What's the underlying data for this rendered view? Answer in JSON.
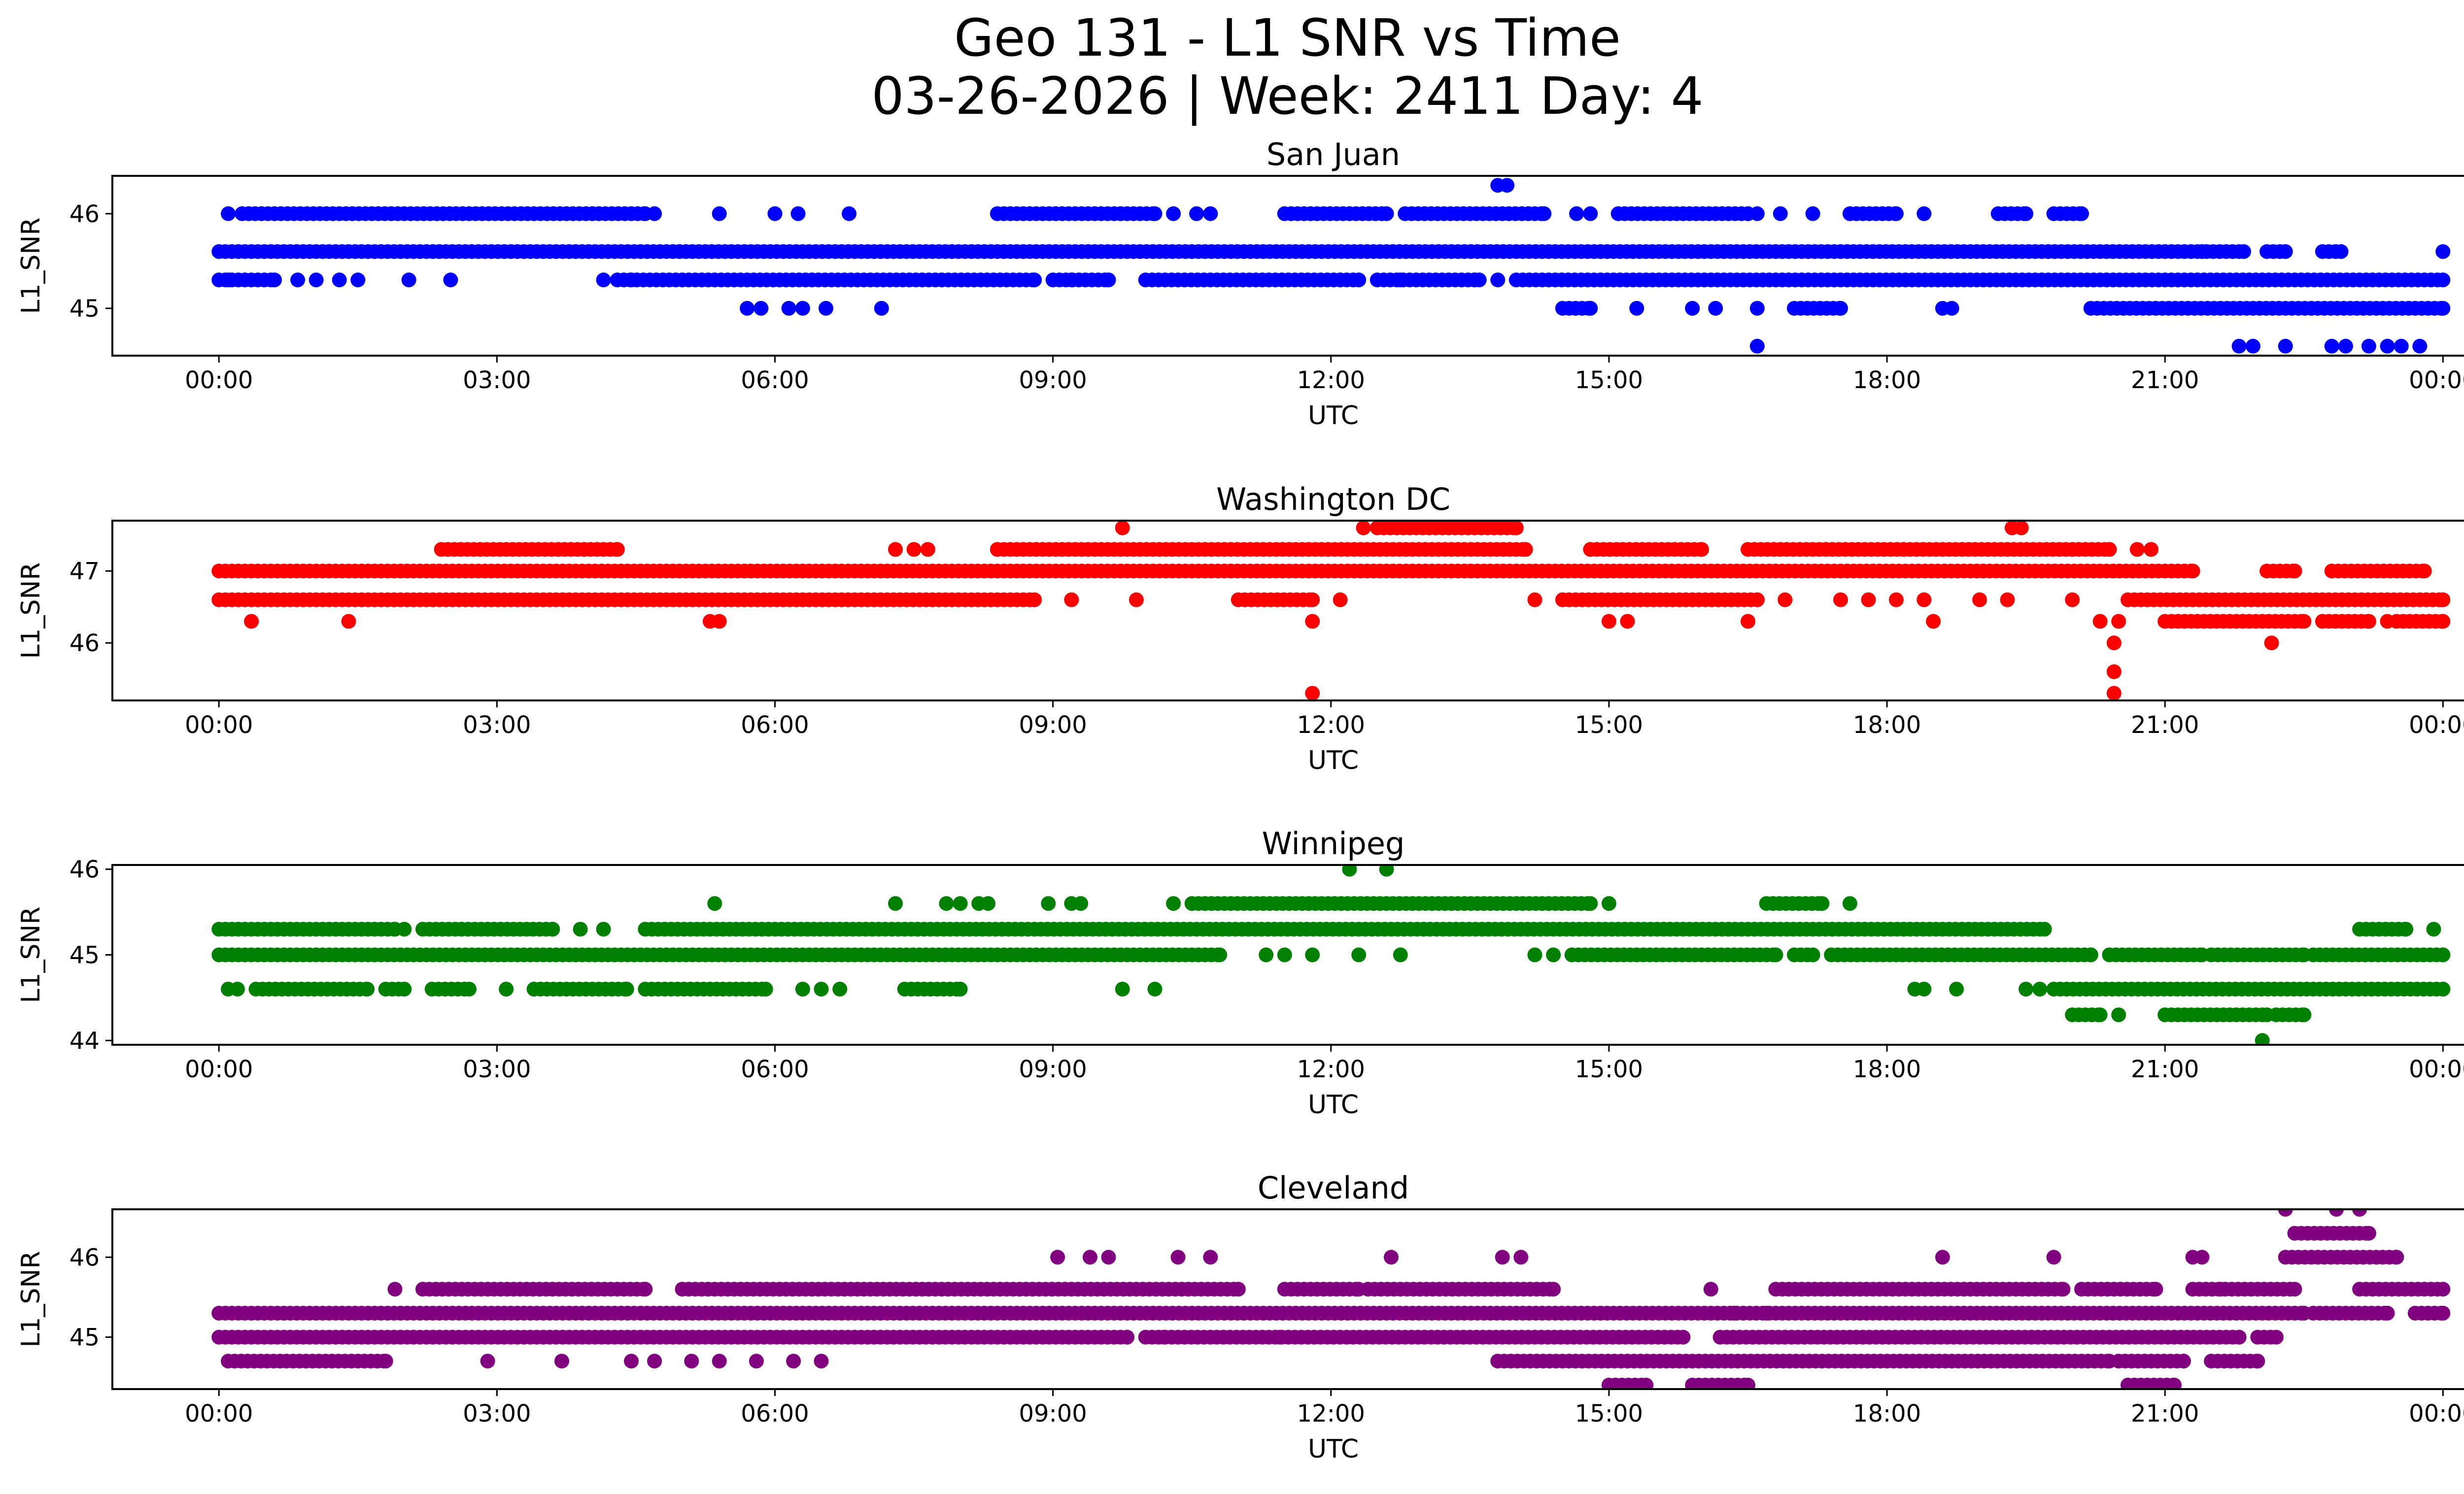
{
  "figure": {
    "title_line1": "Geo 131 - L1 SNR vs Time",
    "title_line2": "03-26-2026 | Week: 2411 Day: 4"
  },
  "chart_data": [
    {
      "type": "scatter",
      "title": "San Juan",
      "xlabel": "UTC",
      "ylabel": "L1_SNR",
      "color": "#0000ff",
      "xlim": [
        -1.15,
        25.2
      ],
      "ylim": [
        44.5,
        46.4
      ],
      "xticks": [
        "00:00",
        "03:00",
        "06:00",
        "09:00",
        "12:00",
        "15:00",
        "18:00",
        "21:00",
        "00:00"
      ],
      "yticks": [
        45,
        46
      ],
      "bands": [
        {
          "y": 45.6,
          "segments": [
            [
              0,
              21.4
            ],
            [
              21.45,
              21.85
            ],
            [
              22.1,
              22.3
            ],
            [
              22.7,
              22.9
            ]
          ]
        },
        {
          "y": 45.3,
          "segments": [
            [
              0,
              0.6
            ],
            [
              4.3,
              8.8
            ],
            [
              9.0,
              9.6
            ],
            [
              10.0,
              12.3
            ],
            [
              12.5,
              13.6
            ],
            [
              14.0,
              24.0
            ]
          ]
        },
        {
          "y": 46.0,
          "segments": [
            [
              0.25,
              4.6
            ],
            [
              8.4,
              10.1
            ],
            [
              11.5,
              12.6
            ],
            [
              12.8,
              14.3
            ],
            [
              15.1,
              16.5
            ],
            [
              17.6,
              18.1
            ],
            [
              19.2,
              19.5
            ],
            [
              19.8,
              20.1
            ]
          ]
        },
        {
          "y": 45.0,
          "segments": [
            [
              14.5,
              14.8
            ],
            [
              17.0,
              17.5
            ],
            [
              20.2,
              24.0
            ]
          ]
        }
      ],
      "points": [
        {
          "x": 0.1,
          "y": 45.3
        },
        {
          "x": 0.85,
          "y": 45.3
        },
        {
          "x": 1.05,
          "y": 45.3
        },
        {
          "x": 1.3,
          "y": 45.3
        },
        {
          "x": 1.5,
          "y": 45.3
        },
        {
          "x": 2.05,
          "y": 45.3
        },
        {
          "x": 2.5,
          "y": 45.3
        },
        {
          "x": 4.15,
          "y": 45.3
        },
        {
          "x": 4.45,
          "y": 45.3
        },
        {
          "x": 9.2,
          "y": 45.3
        },
        {
          "x": 12.1,
          "y": 45.3
        },
        {
          "x": 12.75,
          "y": 45.3
        },
        {
          "x": 13.55,
          "y": 45.3
        },
        {
          "x": 13.8,
          "y": 45.3
        },
        {
          "x": 0.1,
          "y": 46.0
        },
        {
          "x": 4.7,
          "y": 46.0
        },
        {
          "x": 5.4,
          "y": 46.0
        },
        {
          "x": 6.0,
          "y": 46.0
        },
        {
          "x": 6.25,
          "y": 46.0
        },
        {
          "x": 6.8,
          "y": 46.0
        },
        {
          "x": 10.3,
          "y": 46.0
        },
        {
          "x": 10.55,
          "y": 46.0
        },
        {
          "x": 10.7,
          "y": 46.0
        },
        {
          "x": 14.65,
          "y": 46.0
        },
        {
          "x": 14.8,
          "y": 46.0
        },
        {
          "x": 16.6,
          "y": 46.0
        },
        {
          "x": 16.85,
          "y": 46.0
        },
        {
          "x": 17.2,
          "y": 46.0
        },
        {
          "x": 18.4,
          "y": 46.0
        },
        {
          "x": 13.8,
          "y": 46.3
        },
        {
          "x": 13.9,
          "y": 46.3
        },
        {
          "x": 5.7,
          "y": 45.0
        },
        {
          "x": 5.85,
          "y": 45.0
        },
        {
          "x": 6.15,
          "y": 45.0
        },
        {
          "x": 6.3,
          "y": 45.0
        },
        {
          "x": 6.55,
          "y": 45.0
        },
        {
          "x": 7.15,
          "y": 45.0
        },
        {
          "x": 15.3,
          "y": 45.0
        },
        {
          "x": 15.9,
          "y": 45.0
        },
        {
          "x": 16.15,
          "y": 45.0
        },
        {
          "x": 16.6,
          "y": 45.0
        },
        {
          "x": 18.6,
          "y": 45.0
        },
        {
          "x": 18.7,
          "y": 45.0
        },
        {
          "x": 16.6,
          "y": 44.6
        },
        {
          "x": 21.8,
          "y": 44.6
        },
        {
          "x": 21.95,
          "y": 44.6
        },
        {
          "x": 22.3,
          "y": 44.6
        },
        {
          "x": 22.8,
          "y": 44.6
        },
        {
          "x": 22.95,
          "y": 44.6
        },
        {
          "x": 23.2,
          "y": 44.6
        },
        {
          "x": 23.4,
          "y": 44.6
        },
        {
          "x": 23.55,
          "y": 44.6
        },
        {
          "x": 23.75,
          "y": 44.6
        },
        {
          "x": 24.0,
          "y": 45.6
        }
      ]
    },
    {
      "type": "scatter",
      "title": "Washington DC",
      "xlabel": "UTC",
      "ylabel": "L1_SNR",
      "color": "#ff0000",
      "xlim": [
        -1.15,
        25.2
      ],
      "ylim": [
        45.2,
        47.7
      ],
      "xticks": [
        "00:00",
        "03:00",
        "06:00",
        "09:00",
        "12:00",
        "15:00",
        "18:00",
        "21:00",
        "00:00"
      ],
      "yticks": [
        46,
        47
      ],
      "bands": [
        {
          "y": 47.0,
          "segments": [
            [
              0,
              21.3
            ],
            [
              22.1,
              22.4
            ],
            [
              22.8,
              23.8
            ]
          ]
        },
        {
          "y": 46.6,
          "segments": [
            [
              0,
              8.8
            ],
            [
              11.0,
              11.8
            ],
            [
              14.5,
              16.6
            ],
            [
              20.6,
              24.0
            ]
          ]
        },
        {
          "y": 47.3,
          "segments": [
            [
              2.4,
              4.3
            ],
            [
              8.4,
              14.1
            ],
            [
              14.8,
              16.0
            ],
            [
              16.5,
              20.4
            ]
          ]
        },
        {
          "y": 46.3,
          "segments": [
            [
              21.0,
              22.5
            ],
            [
              22.7,
              23.2
            ],
            [
              23.5,
              24.0
            ]
          ]
        },
        {
          "y": 47.6,
          "segments": [
            [
              12.5,
              14.0
            ]
          ]
        }
      ],
      "points": [
        {
          "x": 0.35,
          "y": 46.3
        },
        {
          "x": 1.4,
          "y": 46.3
        },
        {
          "x": 5.3,
          "y": 46.3
        },
        {
          "x": 5.4,
          "y": 46.3
        },
        {
          "x": 11.8,
          "y": 46.3
        },
        {
          "x": 15.0,
          "y": 46.3
        },
        {
          "x": 15.2,
          "y": 46.3
        },
        {
          "x": 16.5,
          "y": 46.3
        },
        {
          "x": 18.5,
          "y": 46.3
        },
        {
          "x": 20.3,
          "y": 46.3
        },
        {
          "x": 20.5,
          "y": 46.3
        },
        {
          "x": 23.4,
          "y": 46.3
        },
        {
          "x": 7.3,
          "y": 47.3
        },
        {
          "x": 7.5,
          "y": 47.3
        },
        {
          "x": 7.65,
          "y": 47.3
        },
        {
          "x": 20.7,
          "y": 47.3
        },
        {
          "x": 20.85,
          "y": 47.3
        },
        {
          "x": 9.2,
          "y": 46.6
        },
        {
          "x": 9.9,
          "y": 46.6
        },
        {
          "x": 12.1,
          "y": 46.6
        },
        {
          "x": 14.2,
          "y": 46.6
        },
        {
          "x": 16.9,
          "y": 46.6
        },
        {
          "x": 17.5,
          "y": 46.6
        },
        {
          "x": 17.8,
          "y": 46.6
        },
        {
          "x": 18.1,
          "y": 46.6
        },
        {
          "x": 18.4,
          "y": 46.6
        },
        {
          "x": 19.0,
          "y": 46.6
        },
        {
          "x": 19.3,
          "y": 46.6
        },
        {
          "x": 20.0,
          "y": 46.6
        },
        {
          "x": 9.75,
          "y": 47.6
        },
        {
          "x": 12.35,
          "y": 47.6
        },
        {
          "x": 19.35,
          "y": 47.6
        },
        {
          "x": 19.45,
          "y": 47.6
        },
        {
          "x": 20.45,
          "y": 46.0
        },
        {
          "x": 22.15,
          "y": 46.0
        },
        {
          "x": 20.45,
          "y": 45.6
        },
        {
          "x": 20.45,
          "y": 45.3
        },
        {
          "x": 11.8,
          "y": 45.3
        }
      ]
    },
    {
      "type": "scatter",
      "title": "Winnipeg",
      "xlabel": "UTC",
      "ylabel": "L1_SNR",
      "color": "#008000",
      "xlim": [
        -1.15,
        25.2
      ],
      "ylim": [
        43.95,
        46.05
      ],
      "xticks": [
        "00:00",
        "03:00",
        "06:00",
        "09:00",
        "12:00",
        "15:00",
        "18:00",
        "21:00",
        "00:00"
      ],
      "yticks": [
        44,
        45,
        46
      ],
      "bands": [
        {
          "y": 45.0,
          "segments": [
            [
              0,
              10.8
            ],
            [
              14.6,
              16.8
            ],
            [
              17.0,
              17.2
            ],
            [
              17.4,
              20.2
            ],
            [
              20.4,
              21.4
            ],
            [
              21.5,
              22.5
            ],
            [
              22.6,
              24.0
            ]
          ]
        },
        {
          "y": 45.3,
          "segments": [
            [
              0,
              1.9
            ],
            [
              2.2,
              3.6
            ],
            [
              4.6,
              19.7
            ],
            [
              23.1,
              23.6
            ]
          ]
        },
        {
          "y": 44.6,
          "segments": [
            [
              0.4,
              1.6
            ],
            [
              1.8,
              2.0
            ],
            [
              2.3,
              2.7
            ],
            [
              3.4,
              4.4
            ],
            [
              4.6,
              5.9
            ],
            [
              7.4,
              8.0
            ],
            [
              19.8,
              24.0
            ]
          ]
        },
        {
          "y": 45.6,
          "segments": [
            [
              10.5,
              14.8
            ],
            [
              16.7,
              17.3
            ]
          ]
        },
        {
          "y": 44.3,
          "segments": [
            [
              20.0,
              20.3
            ],
            [
              21.0,
              22.1
            ],
            [
              22.2,
              22.5
            ]
          ]
        }
      ],
      "points": [
        {
          "x": 5.35,
          "y": 45.6
        },
        {
          "x": 7.3,
          "y": 45.6
        },
        {
          "x": 7.85,
          "y": 45.6
        },
        {
          "x": 8.0,
          "y": 45.6
        },
        {
          "x": 8.2,
          "y": 45.6
        },
        {
          "x": 8.3,
          "y": 45.6
        },
        {
          "x": 8.95,
          "y": 45.6
        },
        {
          "x": 9.2,
          "y": 45.6
        },
        {
          "x": 9.3,
          "y": 45.6
        },
        {
          "x": 10.3,
          "y": 45.6
        },
        {
          "x": 15.0,
          "y": 45.6
        },
        {
          "x": 17.6,
          "y": 45.6
        },
        {
          "x": 12.2,
          "y": 46.0
        },
        {
          "x": 12.6,
          "y": 46.0
        },
        {
          "x": 22.05,
          "y": 44.0
        },
        {
          "x": 11.3,
          "y": 45.0
        },
        {
          "x": 11.5,
          "y": 45.0
        },
        {
          "x": 11.8,
          "y": 45.0
        },
        {
          "x": 12.3,
          "y": 45.0
        },
        {
          "x": 12.75,
          "y": 45.0
        },
        {
          "x": 14.2,
          "y": 45.0
        },
        {
          "x": 14.4,
          "y": 45.0
        },
        {
          "x": 2.0,
          "y": 45.3
        },
        {
          "x": 3.9,
          "y": 45.3
        },
        {
          "x": 4.15,
          "y": 45.3
        },
        {
          "x": 0.1,
          "y": 44.6
        },
        {
          "x": 0.2,
          "y": 44.6
        },
        {
          "x": 3.1,
          "y": 44.6
        },
        {
          "x": 6.3,
          "y": 44.6
        },
        {
          "x": 6.5,
          "y": 44.6
        },
        {
          "x": 6.7,
          "y": 44.6
        },
        {
          "x": 9.75,
          "y": 44.6
        },
        {
          "x": 10.1,
          "y": 44.6
        },
        {
          "x": 18.3,
          "y": 44.6
        },
        {
          "x": 18.4,
          "y": 44.6
        },
        {
          "x": 18.75,
          "y": 44.6
        },
        {
          "x": 19.5,
          "y": 44.6
        },
        {
          "x": 19.65,
          "y": 44.6
        },
        {
          "x": 20.5,
          "y": 44.3
        },
        {
          "x": 23.9,
          "y": 45.3
        }
      ]
    },
    {
      "type": "scatter",
      "title": "Cleveland",
      "xlabel": "UTC",
      "ylabel": "L1_SNR",
      "color": "#800080",
      "xlim": [
        -1.15,
        25.2
      ],
      "ylim": [
        44.35,
        46.6
      ],
      "xticks": [
        "00:00",
        "03:00",
        "06:00",
        "09:00",
        "12:00",
        "15:00",
        "18:00",
        "21:00",
        "00:00"
      ],
      "yticks": [
        45,
        46
      ],
      "bands": [
        {
          "y": 45.3,
          "segments": [
            [
              0,
              22.5
            ],
            [
              22.6,
              23.4
            ],
            [
              23.7,
              24.0
            ]
          ]
        },
        {
          "y": 45.0,
          "segments": [
            [
              0,
              9.8
            ],
            [
              10.0,
              15.8
            ],
            [
              16.2,
              21.8
            ],
            [
              22.0,
              22.2
            ]
          ]
        },
        {
          "y": 45.6,
          "segments": [
            [
              2.2,
              4.6
            ],
            [
              5.0,
              11.0
            ],
            [
              11.5,
              12.3
            ],
            [
              12.4,
              14.4
            ],
            [
              16.8,
              19.9
            ],
            [
              20.1,
              20.9
            ],
            [
              21.3,
              22.4
            ],
            [
              23.1,
              24.0
            ]
          ]
        },
        {
          "y": 44.7,
          "segments": [
            [
              13.8,
              20.4
            ],
            [
              20.5,
              21.2
            ],
            [
              21.5,
              22.0
            ]
          ]
        },
        {
          "y": 44.7,
          "segments": [
            [
              0.1,
              1.8
            ]
          ]
        },
        {
          "y": 46.0,
          "segments": [
            [
              22.3,
              23.5
            ]
          ]
        },
        {
          "y": 46.3,
          "segments": [
            [
              22.4,
              23.2
            ]
          ]
        },
        {
          "y": 44.4,
          "segments": [
            [
              15.0,
              15.4
            ],
            [
              15.9,
              16.5
            ],
            [
              20.6,
              21.1
            ]
          ]
        }
      ],
      "points": [
        {
          "x": 1.9,
          "y": 45.6
        },
        {
          "x": 16.1,
          "y": 45.6
        },
        {
          "x": 21.6,
          "y": 45.6
        },
        {
          "x": 9.05,
          "y": 46.0
        },
        {
          "x": 9.4,
          "y": 46.0
        },
        {
          "x": 9.6,
          "y": 46.0
        },
        {
          "x": 10.35,
          "y": 46.0
        },
        {
          "x": 10.7,
          "y": 46.0
        },
        {
          "x": 12.65,
          "y": 46.0
        },
        {
          "x": 13.85,
          "y": 46.0
        },
        {
          "x": 14.05,
          "y": 46.0
        },
        {
          "x": 18.6,
          "y": 46.0
        },
        {
          "x": 19.8,
          "y": 46.0
        },
        {
          "x": 21.3,
          "y": 46.0
        },
        {
          "x": 21.4,
          "y": 46.0
        },
        {
          "x": 22.3,
          "y": 46.6
        },
        {
          "x": 22.85,
          "y": 46.6
        },
        {
          "x": 23.1,
          "y": 46.6
        },
        {
          "x": 2.9,
          "y": 44.7
        },
        {
          "x": 3.7,
          "y": 44.7
        },
        {
          "x": 4.45,
          "y": 44.7
        },
        {
          "x": 4.7,
          "y": 44.7
        },
        {
          "x": 5.1,
          "y": 44.7
        },
        {
          "x": 5.4,
          "y": 44.7
        },
        {
          "x": 5.8,
          "y": 44.7
        },
        {
          "x": 6.2,
          "y": 44.7
        },
        {
          "x": 6.5,
          "y": 44.7
        },
        {
          "x": 16.35,
          "y": 45.3
        },
        {
          "x": 16.7,
          "y": 45.3
        },
        {
          "x": 11.45,
          "y": 45.0
        },
        {
          "x": 10.2,
          "y": 45.0
        }
      ]
    }
  ]
}
